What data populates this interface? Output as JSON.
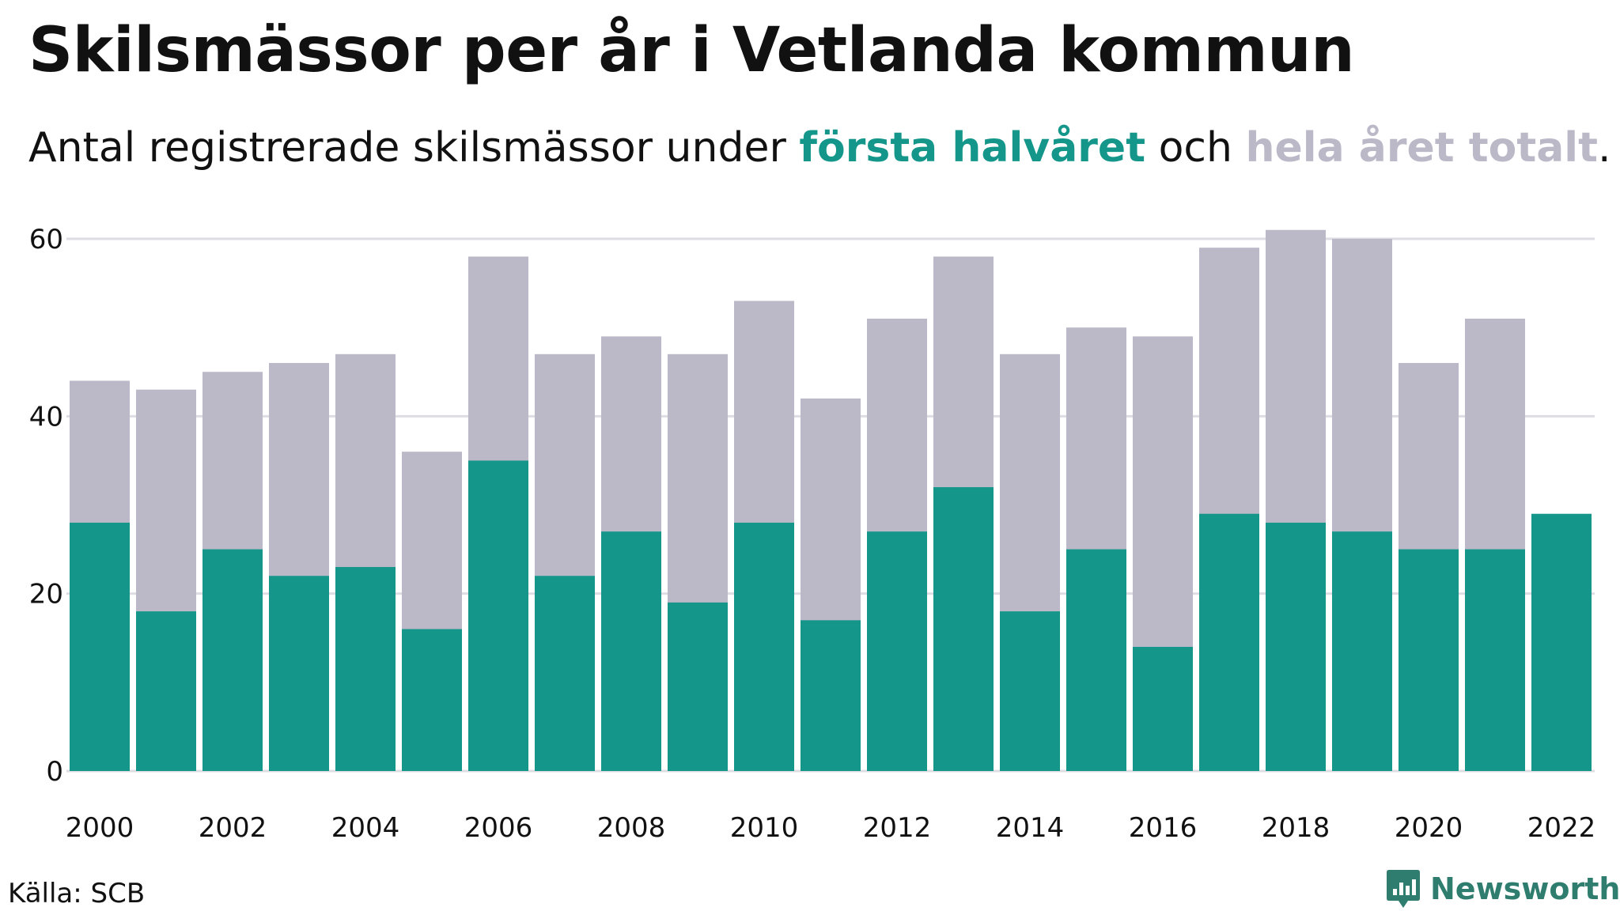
{
  "title": "Skilsmässor per år i Vetlanda kommun",
  "subtitle": {
    "prefix": "Antal registrerade skilsmässor under ",
    "highlight1": "första halvåret",
    "middle": " och ",
    "highlight2": "hela året totalt",
    "suffix": "."
  },
  "colors": {
    "first_half": "#14968a",
    "full_year": "#bbb9c8",
    "grid": "#dedde3",
    "text": "#111111",
    "brand": "#2e7d6e"
  },
  "chart_data": {
    "type": "bar",
    "x": [
      2000,
      2001,
      2002,
      2003,
      2004,
      2005,
      2006,
      2007,
      2008,
      2009,
      2010,
      2011,
      2012,
      2013,
      2014,
      2015,
      2016,
      2017,
      2018,
      2019,
      2020,
      2021,
      2022
    ],
    "series": [
      {
        "name": "hela året totalt",
        "values": [
          44,
          43,
          45,
          46,
          47,
          36,
          58,
          47,
          49,
          47,
          53,
          42,
          51,
          58,
          47,
          50,
          49,
          59,
          61,
          60,
          46,
          51,
          null
        ]
      },
      {
        "name": "första halvåret",
        "values": [
          28,
          18,
          25,
          22,
          23,
          16,
          35,
          22,
          27,
          19,
          28,
          17,
          27,
          32,
          18,
          25,
          14,
          29,
          28,
          27,
          25,
          25,
          29
        ]
      }
    ],
    "xticks": [
      "2000",
      "2002",
      "2004",
      "2006",
      "2008",
      "2010",
      "2012",
      "2014",
      "2016",
      "2018",
      "2020",
      "2022"
    ],
    "yticks": [
      "0",
      "20",
      "40",
      "60"
    ],
    "ylim": [
      0,
      60
    ],
    "grid": true,
    "overlay": true
  },
  "source": "Källa: SCB",
  "brand": {
    "name": "Newsworthy",
    "icon": "newsworthy-logo-icon"
  }
}
